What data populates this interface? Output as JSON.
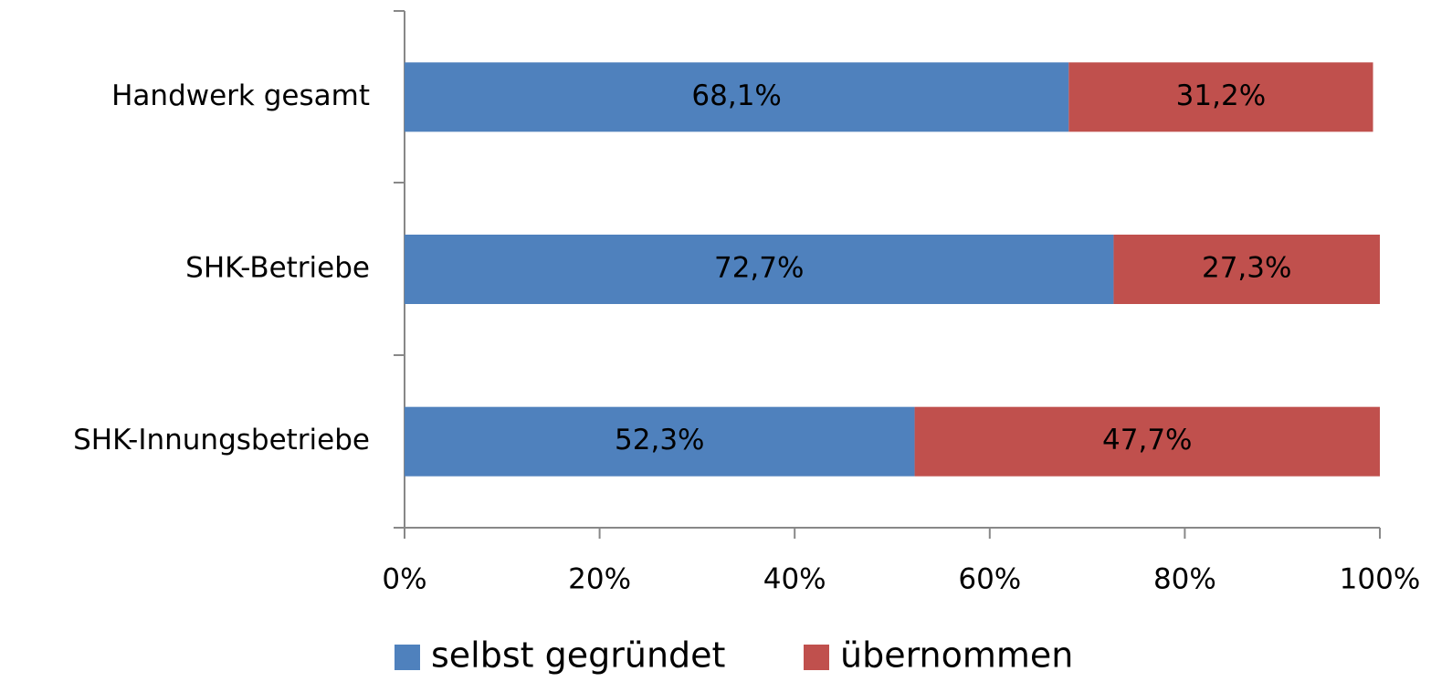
{
  "chart_data": {
    "type": "bar",
    "orientation": "horizontal",
    "stacked": true,
    "categories": [
      "Handwerk gesamt",
      "SHK-Betriebe",
      "SHK-Innungsbetriebe"
    ],
    "series": [
      {
        "name": "selbst gegründet",
        "color": "#4f81bd",
        "values": [
          68.1,
          72.7,
          52.3
        ],
        "value_labels": [
          "68,1%",
          "72,7%",
          "52,3%"
        ]
      },
      {
        "name": "übernommen",
        "color": "#c0504d",
        "values": [
          31.2,
          27.3,
          47.7
        ],
        "value_labels": [
          "31,2%",
          "27,3%",
          "47,7%"
        ]
      }
    ],
    "xlim": [
      0,
      100
    ],
    "xticks": [
      {
        "value": 0,
        "label": "0%"
      },
      {
        "value": 20,
        "label": "20%"
      },
      {
        "value": 40,
        "label": "40%"
      },
      {
        "value": 60,
        "label": "60%"
      },
      {
        "value": 80,
        "label": "80%"
      },
      {
        "value": 100,
        "label": "100%"
      }
    ],
    "legend": "bottom"
  }
}
